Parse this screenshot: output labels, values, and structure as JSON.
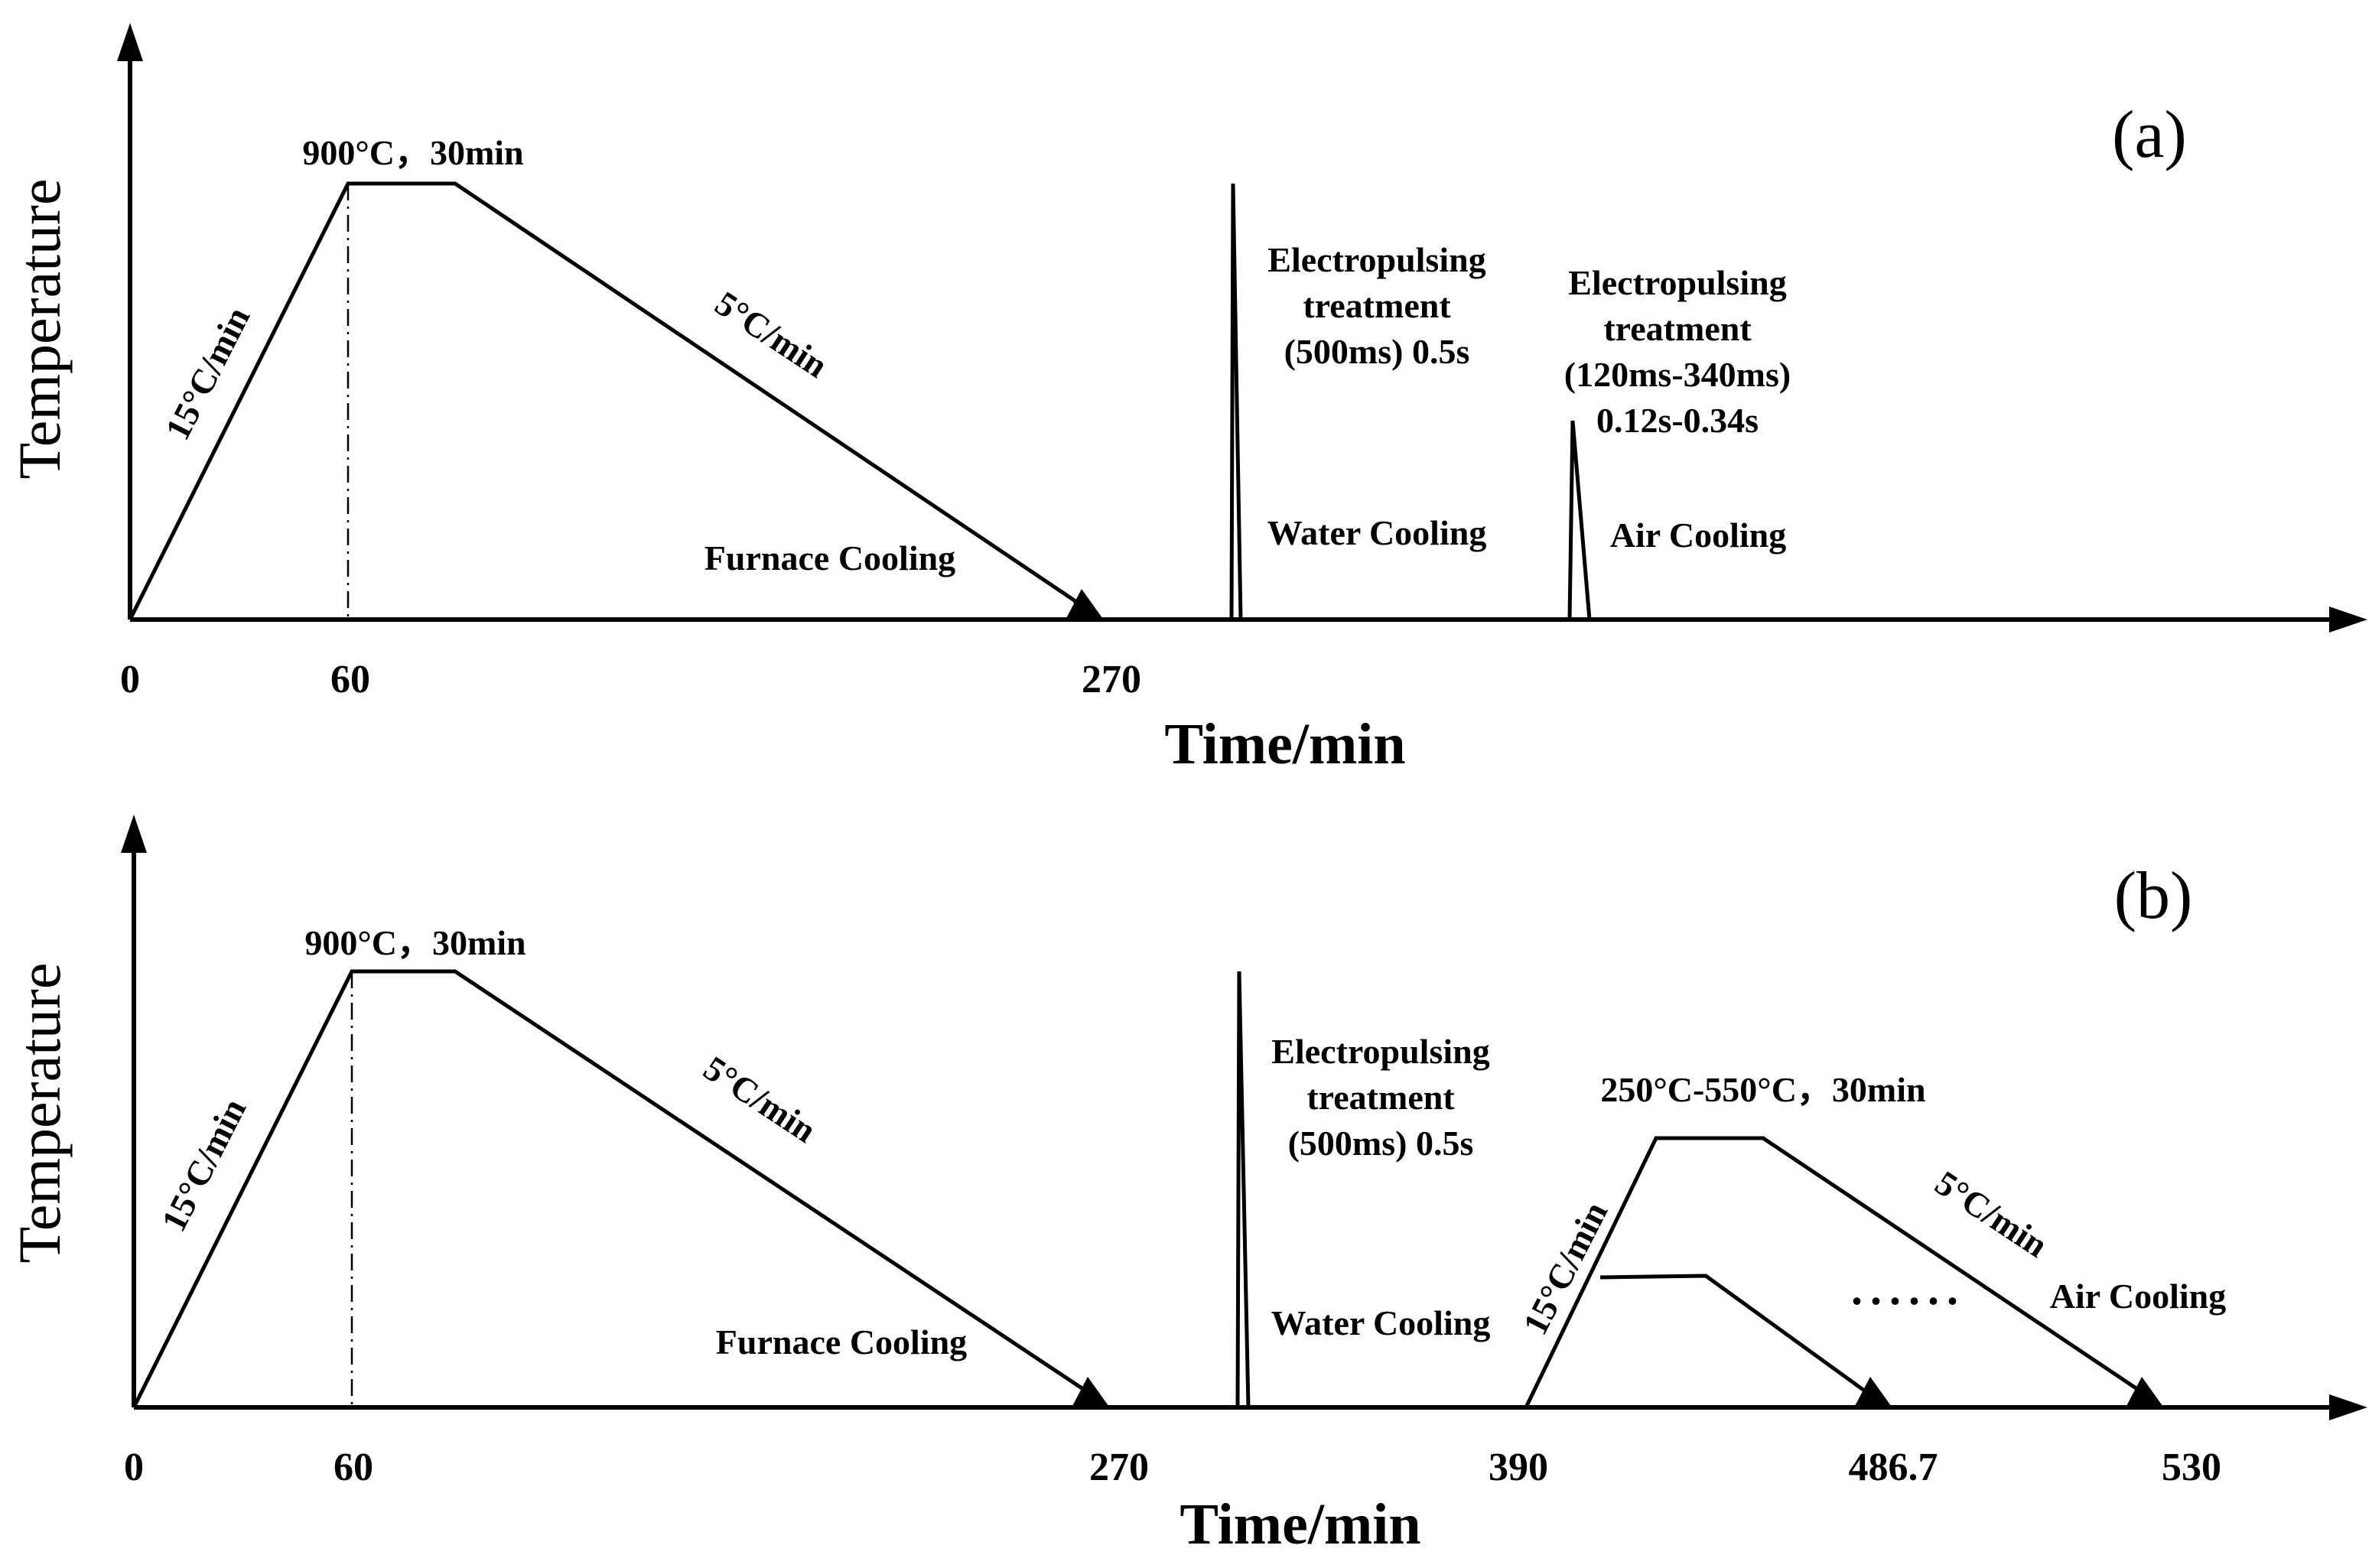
{
  "panel_a": {
    "label": "(a)",
    "y_axis_label": "Temperature",
    "x_axis_label": "Time/min",
    "ticks": [
      "0",
      "60",
      "270"
    ],
    "hold_label": "900°C，30min",
    "heating_rate": "15°C/min",
    "cooling_rate": "5°C/min",
    "furnace_label": "Furnace Cooling",
    "ept1": [
      "Electropulsing",
      "treatment",
      "(500ms) 0.5s"
    ],
    "water_label": "Water Cooling",
    "ept2": [
      "Electropulsing",
      "treatment",
      "(120ms-340ms)",
      "0.12s-0.34s"
    ],
    "air_label": "Air Cooling"
  },
  "panel_b": {
    "label": "(b)",
    "y_axis_label": "Temperature",
    "x_axis_label": "Time/min",
    "ticks": [
      "0",
      "60",
      "270",
      "390",
      "486.7",
      "530"
    ],
    "hold_label": "900°C，30min",
    "heating_rate": "15°C/min",
    "cooling_rate": "5°C/min",
    "furnace_label": "Furnace Cooling",
    "ept1": [
      "Electropulsing",
      "treatment",
      "(500ms) 0.5s"
    ],
    "water_label": "Water Cooling",
    "aging_label": "250°C-550°C，30min",
    "aging_heating_rate": "15°C/min",
    "aging_cooling_rate": "5°C/min",
    "ellipsis": "......",
    "air_label": "Air Cooling"
  }
}
